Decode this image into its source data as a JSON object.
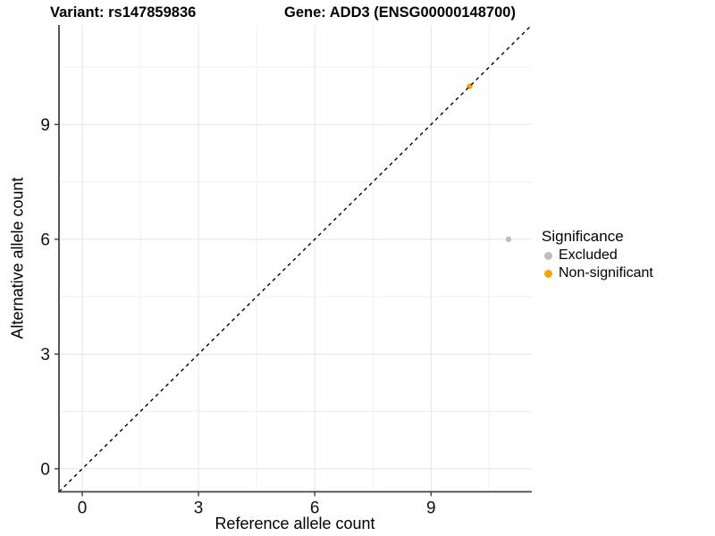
{
  "header": {
    "variant_title": "Variant: rs147859836",
    "gene_title": "Gene: ADD3 (ENSG00000148700)"
  },
  "legend": {
    "title": "Significance",
    "items": [
      {
        "label": "Excluded",
        "color": "#bdbdbd"
      },
      {
        "label": "Non-significant",
        "color": "#f9a602"
      }
    ]
  },
  "chart_data": {
    "type": "scatter",
    "xlabel": "Reference allele count",
    "ylabel": "Alternative allele count",
    "series": [
      {
        "name": "Excluded",
        "color": "#bdbdbd",
        "points": [
          {
            "x": 11,
            "y": 6
          }
        ]
      },
      {
        "name": "Non-significant",
        "color": "#f9a602",
        "points": [
          {
            "x": 10,
            "y": 10
          }
        ]
      }
    ],
    "xlim": [
      -0.6,
      11.6
    ],
    "ylim": [
      -0.6,
      11.6
    ],
    "x_major_ticks": [
      0,
      3,
      6,
      9
    ],
    "x_minor_ticks": [
      1.5,
      4.5,
      7.5,
      10.5
    ],
    "y_major_ticks": [
      0,
      3,
      6,
      9
    ],
    "y_minor_ticks": [
      1.5,
      4.5,
      7.5,
      10.5
    ],
    "reference_line": {
      "type": "identity",
      "slope": 1,
      "intercept": 0,
      "style": "dashed",
      "color": "#000000"
    },
    "grid": true,
    "legend_position": "right",
    "point_radius": 3.2
  },
  "style": {
    "background": "#ffffff",
    "grid_major_color": "#e5e5e5",
    "grid_minor_color": "#f0f0f0",
    "axis_line_color": "#454545",
    "tick_color": "#333333",
    "tick_label_color": "#111111"
  }
}
